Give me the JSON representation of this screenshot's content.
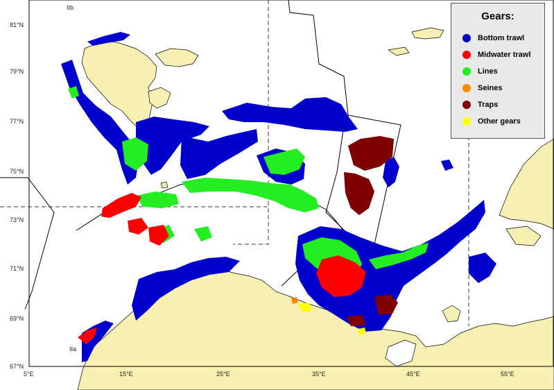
{
  "map": {
    "lat_labels": [
      "81°N",
      "79°N",
      "77°N",
      "75°N",
      "73°N",
      "71°N",
      "69°N",
      "67°N"
    ],
    "lon_labels": [
      "5°E",
      "15°E",
      "25°E",
      "35°E",
      "45°E",
      "55°E"
    ],
    "zone_labels": [
      "IIb",
      "IIa"
    ]
  },
  "legend": {
    "title": "Gears:",
    "items": [
      {
        "label": "Bottom trawl",
        "color": "#0000cc"
      },
      {
        "label": "Midwater trawl",
        "color": "#ff0000"
      },
      {
        "label": "Lines",
        "color": "#22ee22"
      },
      {
        "label": "Seines",
        "color": "#ff8800"
      },
      {
        "label": "Traps",
        "color": "#800000"
      },
      {
        "label": "Other gears",
        "color": "#ffff00"
      }
    ]
  },
  "colors": {
    "sea": "#ffffff",
    "land": "#f7f0b2",
    "coast": "#000000"
  }
}
